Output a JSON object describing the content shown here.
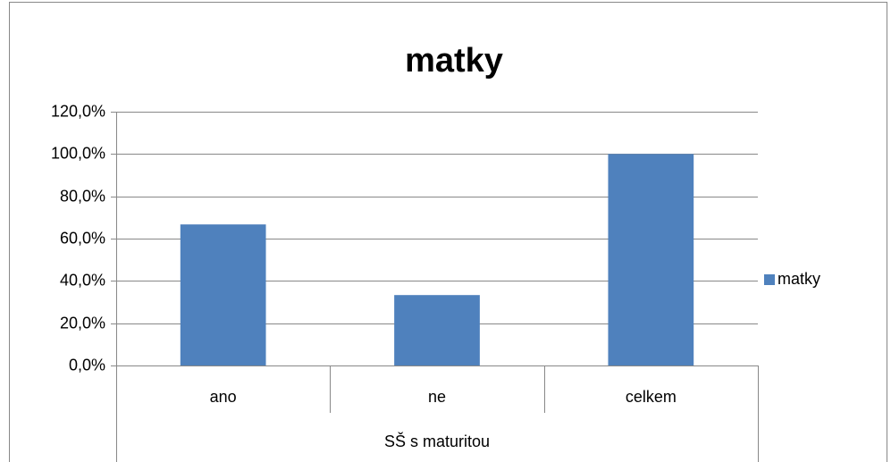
{
  "chart_data": {
    "type": "bar",
    "title": "matky",
    "categories": [
      "ano",
      "ne",
      "celkem"
    ],
    "group_label": "SŠ s maturitou",
    "series": [
      {
        "name": "matky",
        "color": "#4f81bd",
        "values": [
          66.7,
          33.3,
          100
        ]
      }
    ],
    "ylim": [
      0,
      120
    ],
    "yticks": [
      {
        "value": 0,
        "label": "0,0%"
      },
      {
        "value": 20,
        "label": "20,0%"
      },
      {
        "value": 40,
        "label": "40,0%"
      },
      {
        "value": 60,
        "label": "60,0%"
      },
      {
        "value": 80,
        "label": "80,0%"
      },
      {
        "value": 100,
        "label": "100,0%"
      },
      {
        "value": 120,
        "label": "120,0%"
      }
    ],
    "grid": true,
    "legend": "right"
  }
}
